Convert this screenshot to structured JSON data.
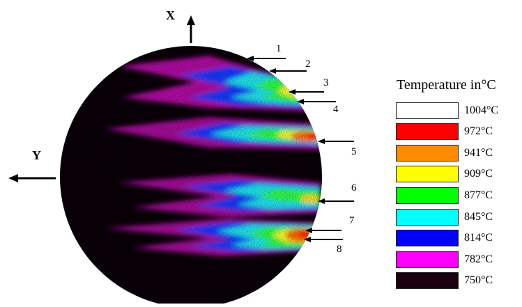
{
  "axes": {
    "x_label": "X",
    "y_label": "Y"
  },
  "callouts": [
    "1",
    "2",
    "3",
    "4",
    "5",
    "6",
    "7",
    "8"
  ],
  "legend": {
    "title": "Temperature in°C",
    "items": [
      {
        "label": "1004°C",
        "color": "#ffffff"
      },
      {
        "label": "972°C",
        "color": "#ff0000"
      },
      {
        "label": "941°C",
        "color": "#ff8c00"
      },
      {
        "label": "909°C",
        "color": "#ffff00"
      },
      {
        "label": "877°C",
        "color": "#00ff00"
      },
      {
        "label": "845°C",
        "color": "#00ffff"
      },
      {
        "label": "814°C",
        "color": "#0000ff"
      },
      {
        "label": "782°C",
        "color": "#ff00ff"
      },
      {
        "label": "750°C",
        "color": "#1a0010"
      }
    ]
  }
}
